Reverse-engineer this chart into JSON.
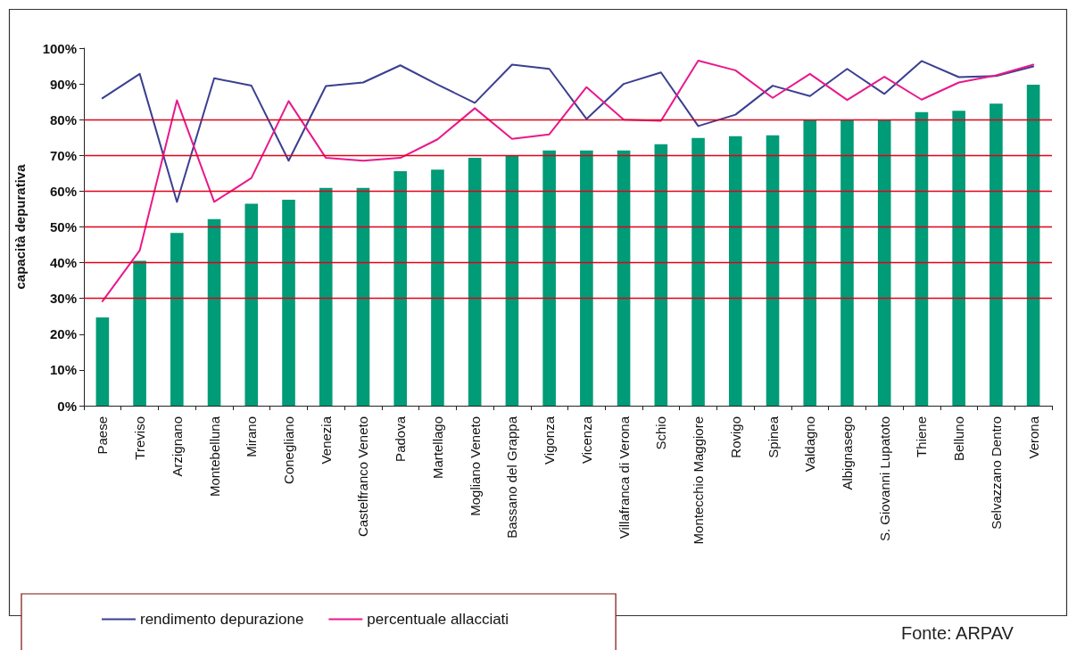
{
  "chart_data": {
    "type": "bar",
    "ylabel": "capacità depurativa",
    "categories": [
      "Paese",
      "Treviso",
      "Arzignano",
      "Montebelluna",
      "Mirano",
      "Conegliano",
      "Venezia",
      "Castelfranco Veneto",
      "Padova",
      "Martellago",
      "Mogliano Veneto",
      "Bassano del Grappa",
      "Vigonza",
      "Vicenza",
      "Villafranca di Verona",
      "Schio",
      "Montecchio Maggiore",
      "Rovigo",
      "Spinea",
      "Valdagno",
      "Albignasego",
      "S. Giovanni Lupatoto",
      "Thiene",
      "Belluno",
      "Selvazzano Dentro",
      "Verona"
    ],
    "series": [
      {
        "color": "#009b77",
        "values": [
          24.7,
          40.5,
          48.3,
          52.2,
          56.5,
          57.6,
          60.9,
          60.9,
          65.6,
          66,
          69.3,
          69.8,
          71.4,
          71.4,
          71.4,
          73.1,
          74.9,
          75.4,
          75.6,
          79.8,
          79.8,
          79.8,
          82.1,
          82.5,
          84.5,
          89.8
        ]
      },
      {
        "type": "line",
        "name": "rendimento depurazione",
        "color": "#3a3f8f",
        "values": [
          86,
          92.8,
          57,
          91.6,
          89.5,
          68.5,
          89.4,
          90.4,
          95.2,
          89.8,
          84.7,
          95.4,
          94.2,
          80.2,
          90,
          93.2,
          78.2,
          81.4,
          89.5,
          86.6,
          94.2,
          87.2,
          96.4,
          91.9,
          92.2,
          94.9
        ]
      },
      {
        "type": "line",
        "name": "percentuale allacciati",
        "color": "#e8198b",
        "values": [
          29.2,
          43.4,
          85.4,
          57,
          63.7,
          85.2,
          69.3,
          68.5,
          69.3,
          74.5,
          83.2,
          74.6,
          75.9,
          89.1,
          80,
          79.7,
          96.5,
          93.8,
          86.1,
          92.8,
          85.5,
          92,
          85.6,
          90.4,
          92.4,
          95.4
        ]
      }
    ],
    "ylim": [
      0,
      100
    ],
    "yticks": [
      {
        "value": 0,
        "label": "0%"
      },
      {
        "value": 10,
        "label": "10%"
      },
      {
        "value": 20,
        "label": "20%"
      },
      {
        "value": 30,
        "label": "30%"
      },
      {
        "value": 40,
        "label": "40%"
      },
      {
        "value": 50,
        "label": "50%"
      },
      {
        "value": 60,
        "label": "60%"
      },
      {
        "value": 70,
        "label": "70%"
      },
      {
        "value": 80,
        "label": "80%"
      },
      {
        "value": 90,
        "label": "90%"
      },
      {
        "value": 100,
        "label": "100%"
      }
    ],
    "ref_lines": [
      {
        "axis": "y",
        "value": 30,
        "color": "#e2001a"
      },
      {
        "axis": "y",
        "value": 40,
        "color": "#e2001a"
      },
      {
        "axis": "y",
        "value": 50,
        "color": "#e2001a"
      },
      {
        "axis": "y",
        "value": 60,
        "color": "#e2001a"
      },
      {
        "axis": "y",
        "value": 70,
        "color": "#e2001a"
      },
      {
        "axis": "y",
        "value": 80,
        "color": "#e2001a"
      }
    ],
    "grid": false,
    "legend": "bottom left",
    "marker": "none",
    "line_style": "solid",
    "annotations": [
      "Fonte: ARPAV"
    ]
  }
}
